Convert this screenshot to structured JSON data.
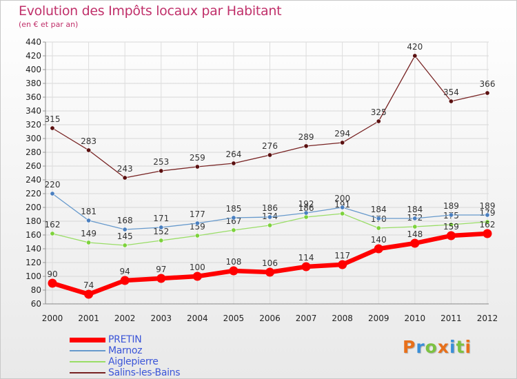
{
  "chart_data": {
    "type": "line",
    "title": "Evolution des Impôts locaux par Habitant",
    "subtitle": "(en € et par an)",
    "xlabel": "",
    "ylabel": "",
    "categories": [
      "2000",
      "2001",
      "2002",
      "2003",
      "2004",
      "2005",
      "2006",
      "2007",
      "2008",
      "2009",
      "2010",
      "2011",
      "2012"
    ],
    "ylim": [
      60,
      440
    ],
    "yticks": [
      60,
      80,
      100,
      120,
      140,
      160,
      180,
      200,
      220,
      240,
      260,
      280,
      300,
      320,
      340,
      360,
      380,
      400,
      420,
      440
    ],
    "grid": true,
    "legend_position": "bottom-left",
    "series": [
      {
        "name": "PRETIN",
        "color": "#ff0000",
        "values": [
          90,
          74,
          94,
          97,
          100,
          108,
          106,
          114,
          117,
          140,
          148,
          159,
          162
        ]
      },
      {
        "name": "Marnoz",
        "color": "#6699cc",
        "values": [
          220,
          181,
          168,
          171,
          177,
          185,
          186,
          192,
          200,
          184,
          184,
          189,
          189
        ]
      },
      {
        "name": "Aiglepierre",
        "color": "#99dd66",
        "values": [
          162,
          149,
          145,
          152,
          159,
          167,
          174,
          186,
          191,
          170,
          172,
          175,
          179
        ]
      },
      {
        "name": "Salins-les-Bains",
        "color": "#772222",
        "values": [
          315,
          283,
          243,
          253,
          259,
          264,
          276,
          289,
          294,
          325,
          420,
          354,
          366
        ]
      }
    ]
  },
  "logo": {
    "letters": [
      "P",
      "r",
      "o",
      "x",
      "i",
      "t",
      "i"
    ],
    "colors": [
      "#e8701a",
      "#3a8fd8",
      "#7cc242",
      "#e8701a",
      "#3a8fd8",
      "#7cc242",
      "#e8701a"
    ]
  }
}
